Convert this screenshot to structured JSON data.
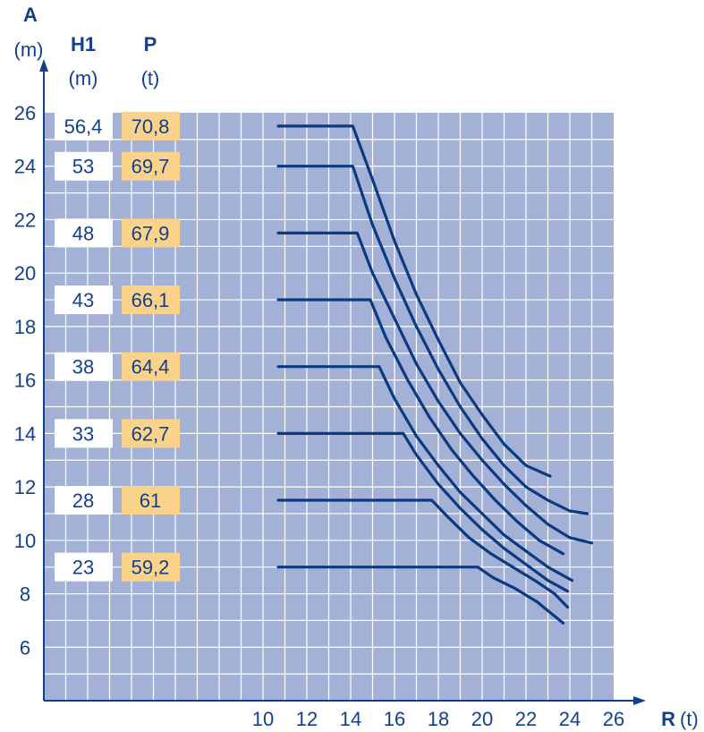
{
  "chart_data": {
    "type": "line",
    "y_axis": {
      "title": "A",
      "unit": "(m)",
      "ticks": [
        "6",
        "8",
        "10",
        "12",
        "14",
        "16",
        "18",
        "20",
        "22",
        "24",
        "26"
      ]
    },
    "x_axis": {
      "title": "R",
      "unit": "(t)",
      "ticks": [
        "10",
        "12",
        "14",
        "16",
        "18",
        "20",
        "22",
        "24",
        "26"
      ]
    },
    "table_headers": {
      "h1": "H1",
      "h1_unit": "(m)",
      "p": "P",
      "p_unit": "(t)"
    },
    "xlim": [
      0,
      26
    ],
    "ylim": [
      4,
      26
    ],
    "grid": true,
    "colors": {
      "plot_bg": "#a4b1d6",
      "grid": "#ffffff",
      "line": "#0c3a80",
      "axis": "#14408a",
      "p_box": "#fad28a",
      "h1_box": "#ffffff"
    },
    "series": [
      {
        "h1": "56,4",
        "p": "70,8",
        "points": [
          [
            10.7,
            25.5
          ],
          [
            14.1,
            25.5
          ],
          [
            15,
            23.5
          ],
          [
            16,
            21.2
          ],
          [
            17,
            19.2
          ],
          [
            18,
            17.5
          ],
          [
            19,
            15.9
          ],
          [
            20,
            14.7
          ],
          [
            21,
            13.6
          ],
          [
            22,
            12.8
          ],
          [
            23.1,
            12.4
          ]
        ]
      },
      {
        "h1": "53",
        "p": "69,7",
        "points": [
          [
            10.7,
            24
          ],
          [
            14.1,
            24
          ],
          [
            15,
            21.8
          ],
          [
            16,
            19.8
          ],
          [
            17,
            18
          ],
          [
            18,
            16.4
          ],
          [
            19,
            15
          ],
          [
            20,
            13.8
          ],
          [
            21,
            12.8
          ],
          [
            22,
            12
          ],
          [
            23,
            11.5
          ],
          [
            24,
            11.1
          ],
          [
            24.8,
            11
          ]
        ]
      },
      {
        "h1": "48",
        "p": "67,9",
        "points": [
          [
            10.7,
            21.5
          ],
          [
            14.3,
            21.5
          ],
          [
            15,
            20
          ],
          [
            16,
            18.3
          ],
          [
            17,
            16.6
          ],
          [
            18,
            15.2
          ],
          [
            19,
            14
          ],
          [
            20,
            13
          ],
          [
            21,
            12.1
          ],
          [
            22,
            11.3
          ],
          [
            23,
            10.6
          ],
          [
            24,
            10.1
          ],
          [
            25,
            9.9
          ]
        ]
      },
      {
        "h1": "43",
        "p": "66,1",
        "points": [
          [
            10.7,
            19
          ],
          [
            14.9,
            19
          ],
          [
            15.6,
            17.6
          ],
          [
            16.6,
            16
          ],
          [
            17.6,
            14.6
          ],
          [
            18.6,
            13.4
          ],
          [
            19.6,
            12.4
          ],
          [
            20.6,
            11.5
          ],
          [
            21.6,
            10.7
          ],
          [
            22.6,
            10
          ],
          [
            23.7,
            9.5
          ]
        ]
      },
      {
        "h1": "38",
        "p": "64,4",
        "points": [
          [
            10.7,
            16.5
          ],
          [
            15.3,
            16.5
          ],
          [
            16,
            15.3
          ],
          [
            17,
            13.9
          ],
          [
            18,
            12.8
          ],
          [
            19,
            11.8
          ],
          [
            20,
            11
          ],
          [
            21,
            10.2
          ],
          [
            22,
            9.6
          ],
          [
            23,
            9
          ],
          [
            24.1,
            8.5
          ]
        ]
      },
      {
        "h1": "33",
        "p": "62,7",
        "points": [
          [
            10.7,
            14
          ],
          [
            16.4,
            14
          ],
          [
            17,
            13.2
          ],
          [
            18,
            12.1
          ],
          [
            19,
            11.2
          ],
          [
            20,
            10.4
          ],
          [
            21,
            9.7
          ],
          [
            22,
            9.1
          ],
          [
            23,
            8.5
          ],
          [
            23.9,
            8.1
          ]
        ]
      },
      {
        "h1": "28",
        "p": "61",
        "points": [
          [
            10.7,
            11.5
          ],
          [
            17.7,
            11.5
          ],
          [
            18.4,
            10.9
          ],
          [
            19.4,
            10.1
          ],
          [
            20.4,
            9.5
          ],
          [
            21.4,
            9
          ],
          [
            22.4,
            8.5
          ],
          [
            23.3,
            8
          ],
          [
            23.9,
            7.5
          ]
        ]
      },
      {
        "h1": "23",
        "p": "59,2",
        "points": [
          [
            10.7,
            9
          ],
          [
            19.8,
            9
          ],
          [
            20.5,
            8.6
          ],
          [
            21.5,
            8.2
          ],
          [
            22.5,
            7.7
          ],
          [
            23.7,
            6.9
          ]
        ]
      }
    ]
  }
}
